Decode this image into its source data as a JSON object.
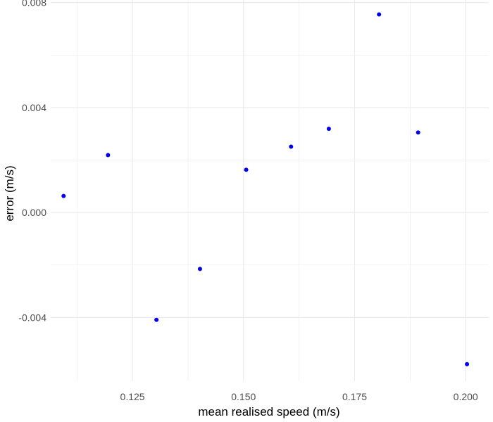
{
  "chart_data": {
    "type": "scatter",
    "title": "",
    "xlabel": "mean realised speed (m/s)",
    "ylabel": "error (m/s)",
    "xlim": [
      0.1066,
      0.2052
    ],
    "ylim": [
      -0.00643,
      0.0081
    ],
    "x_ticks": [
      {
        "value": 0.125,
        "label": "0.125"
      },
      {
        "value": 0.15,
        "label": "0.150"
      },
      {
        "value": 0.175,
        "label": "0.175"
      },
      {
        "value": 0.2,
        "label": "0.200"
      }
    ],
    "x_minor_ticks": [
      0.1125,
      0.1375,
      0.1625,
      0.1875
    ],
    "y_ticks": [
      {
        "value": 0.008,
        "label": "0.008"
      },
      {
        "value": 0.004,
        "label": "0.004"
      },
      {
        "value": 0.0,
        "label": "0.000"
      },
      {
        "value": -0.004,
        "label": "-0.004"
      }
    ],
    "y_minor_ticks": [
      0.006,
      0.002,
      -0.002
    ],
    "grid": true,
    "point_color": "#0000ee",
    "grid_color": "#ebebeb",
    "points": [
      {
        "x": 0.1095,
        "y": 0.00063
      },
      {
        "x": 0.1195,
        "y": 0.00219
      },
      {
        "x": 0.1304,
        "y": -0.00409
      },
      {
        "x": 0.1402,
        "y": -0.00215
      },
      {
        "x": 0.1506,
        "y": 0.00163
      },
      {
        "x": 0.1607,
        "y": 0.00251
      },
      {
        "x": 0.1692,
        "y": 0.00319
      },
      {
        "x": 0.1805,
        "y": 0.00755
      },
      {
        "x": 0.1893,
        "y": 0.00305
      },
      {
        "x": 0.2003,
        "y": -0.00578
      }
    ]
  }
}
